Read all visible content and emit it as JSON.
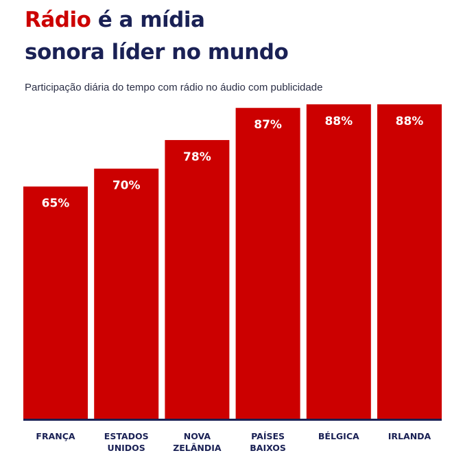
{
  "title": {
    "accent": "Rádio",
    "rest_line1": " é a mídia",
    "line2": "sonora líder no mundo"
  },
  "subtitle": "Participação diária do tempo com rádio no áudio com publicidade",
  "colors": {
    "bar": "#cc0000",
    "title_accent": "#cc0000",
    "navy": "#1a2155",
    "value_label": "#ffffff"
  },
  "chart_data": {
    "type": "bar",
    "categories": [
      [
        "FRANÇA"
      ],
      [
        "ESTADOS",
        "UNIDOS"
      ],
      [
        "NOVA",
        "ZELÂNDIA"
      ],
      [
        "PAÍSES",
        "BAIXOS"
      ],
      [
        "BÉLGICA"
      ],
      [
        "IRLANDA"
      ]
    ],
    "values": [
      65,
      70,
      78,
      87,
      88,
      88
    ],
    "value_labels": [
      "65%",
      "70%",
      "78%",
      "87%",
      "88%",
      "88%"
    ],
    "title": "",
    "xlabel": "",
    "ylabel": "",
    "ylim": [
      0,
      88
    ],
    "grid": false,
    "legend": "none",
    "axis_line": true
  }
}
